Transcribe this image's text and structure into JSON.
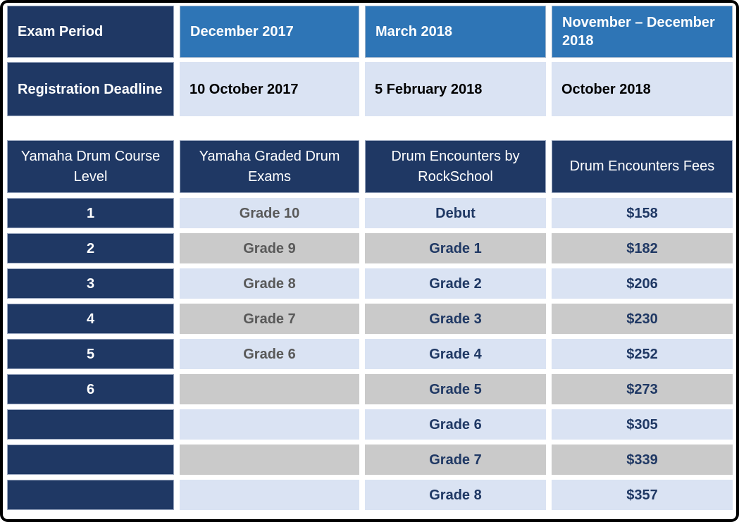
{
  "colors": {
    "navy": "#1F3864",
    "header_blue": "#2E75B6",
    "row_lightblue": "#DAE3F3",
    "row_gray": "#CACACA",
    "text_gray": "#595959",
    "frame_black": "#000000"
  },
  "schedule_table": {
    "rows": [
      {
        "header": "Exam Period",
        "cells": [
          "December 2017",
          "March 2018",
          "November – December 2018"
        ]
      },
      {
        "header": "Registration Deadline",
        "cells": [
          "10 October 2017",
          "5 February 2018",
          "October 2018"
        ]
      }
    ]
  },
  "levels_table": {
    "headers": [
      "Yamaha Drum Course Level",
      "Yamaha Graded Drum Exams",
      "Drum Encounters by RockSchool",
      "Drum Encounters Fees"
    ],
    "rows": [
      {
        "level": "1",
        "yamaha_grade": "Grade 10",
        "rockschool_grade": "Debut",
        "fee": "$158"
      },
      {
        "level": "2",
        "yamaha_grade": "Grade 9",
        "rockschool_grade": "Grade 1",
        "fee": "$182"
      },
      {
        "level": "3",
        "yamaha_grade": "Grade 8",
        "rockschool_grade": "Grade 2",
        "fee": "$206"
      },
      {
        "level": "4",
        "yamaha_grade": "Grade 7",
        "rockschool_grade": "Grade 3",
        "fee": "$230"
      },
      {
        "level": "5",
        "yamaha_grade": "Grade 6",
        "rockschool_grade": "Grade 4",
        "fee": "$252"
      },
      {
        "level": "6",
        "yamaha_grade": "",
        "rockschool_grade": "Grade 5",
        "fee": "$273"
      },
      {
        "level": "",
        "yamaha_grade": "",
        "rockschool_grade": "Grade 6",
        "fee": "$305"
      },
      {
        "level": "",
        "yamaha_grade": "",
        "rockschool_grade": "Grade 7",
        "fee": "$339"
      },
      {
        "level": "",
        "yamaha_grade": "",
        "rockschool_grade": "Grade 8",
        "fee": "$357"
      }
    ]
  }
}
